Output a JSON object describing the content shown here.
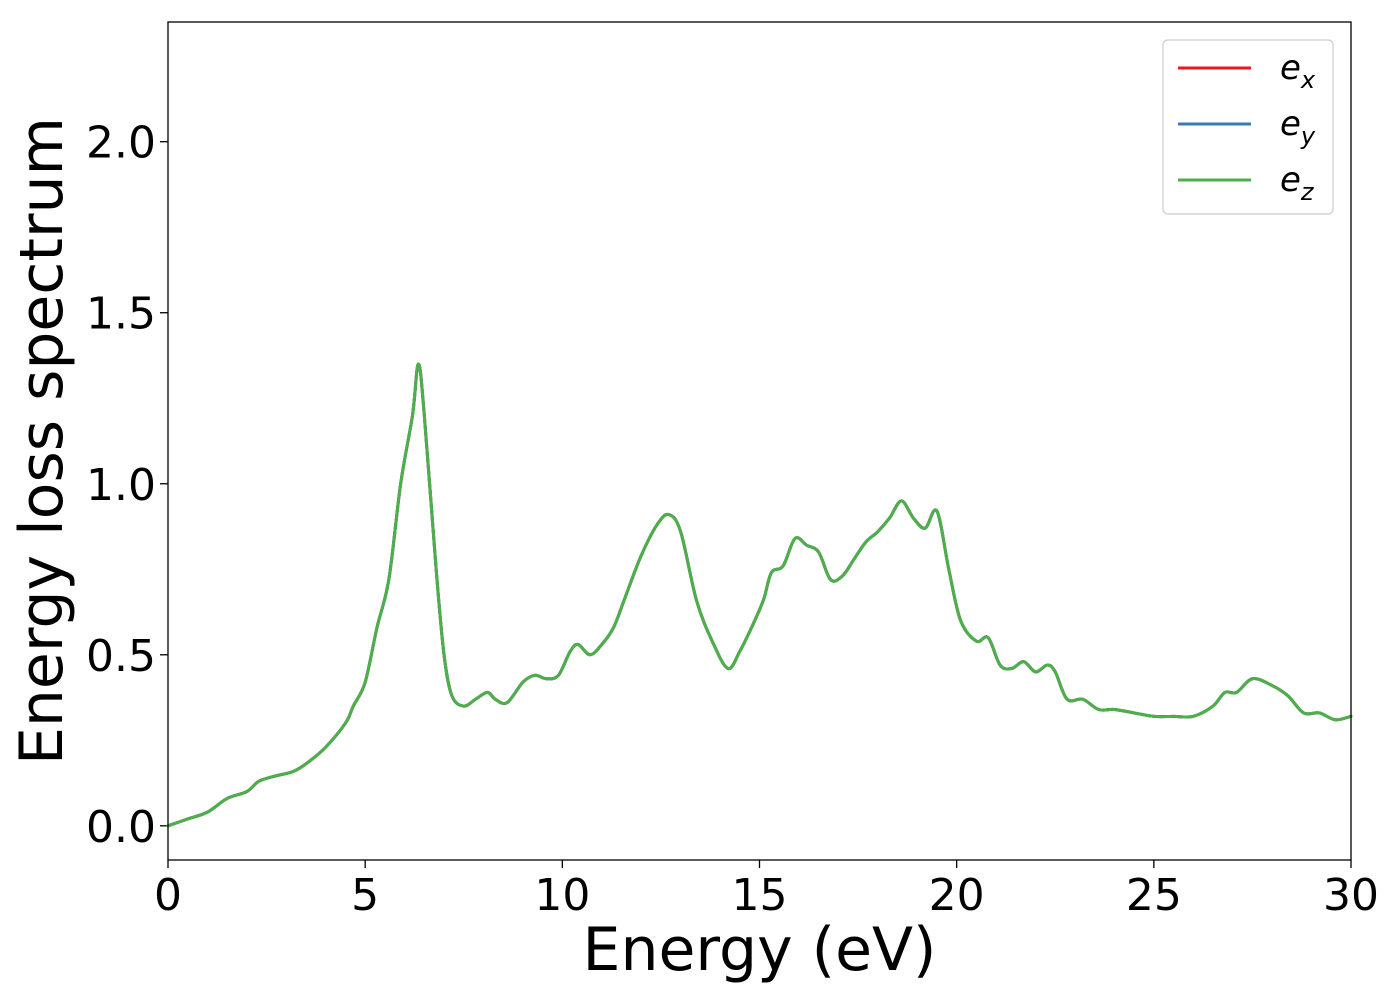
{
  "chart_data": {
    "type": "line",
    "xlabel": "Energy (eV)",
    "ylabel": "Energy loss spectrum",
    "xlim": [
      0,
      30
    ],
    "ylim": [
      -0.1,
      2.35
    ],
    "xticks": [
      0,
      5,
      10,
      15,
      20,
      25,
      30
    ],
    "xtick_labels": [
      "0",
      "5",
      "10",
      "15",
      "20",
      "25",
      "30"
    ],
    "yticks": [
      0.0,
      0.5,
      1.0,
      1.5,
      2.0
    ],
    "ytick_labels": [
      "0.0",
      "0.5",
      "1.0",
      "1.5",
      "2.0"
    ],
    "grid": false,
    "legend_position": "top-right",
    "legend_items": [
      {
        "base": "e",
        "sub": "x",
        "color": "#e41a1c"
      },
      {
        "base": "e",
        "sub": "y",
        "color": "#377eb8"
      },
      {
        "base": "e",
        "sub": "z",
        "color": "#4daf4a"
      }
    ],
    "x": [
      0,
      0.5,
      1.0,
      1.5,
      2.0,
      2.3,
      2.7,
      3.2,
      3.6,
      4.0,
      4.5,
      4.7,
      5.0,
      5.3,
      5.6,
      5.9,
      6.2,
      6.35,
      6.5,
      6.8,
      7.0,
      7.2,
      7.5,
      7.8,
      8.1,
      8.3,
      8.6,
      9.0,
      9.3,
      9.6,
      9.9,
      10.2,
      10.4,
      10.7,
      11.0,
      11.3,
      11.6,
      12.0,
      12.4,
      12.7,
      13.0,
      13.4,
      13.8,
      14.2,
      14.5,
      14.8,
      15.1,
      15.3,
      15.6,
      15.9,
      16.2,
      16.5,
      16.8,
      17.1,
      17.4,
      17.7,
      18.0,
      18.3,
      18.6,
      18.9,
      19.2,
      19.5,
      19.8,
      20.1,
      20.5,
      20.8,
      21.1,
      21.4,
      21.7,
      22.0,
      22.3,
      22.5,
      22.8,
      23.2,
      23.6,
      24.0,
      24.5,
      25.0,
      25.5,
      26.0,
      26.5,
      26.8,
      27.1,
      27.5,
      28.0,
      28.4,
      28.8,
      29.2,
      29.6,
      30.0
    ],
    "series": [
      {
        "values": [
          0.0,
          0.02,
          0.04,
          0.08,
          0.1,
          0.13,
          0.145,
          0.16,
          0.19,
          0.23,
          0.3,
          0.35,
          0.42,
          0.58,
          0.72,
          1.0,
          1.2,
          1.35,
          1.2,
          0.75,
          0.5,
          0.38,
          0.35,
          0.37,
          0.39,
          0.37,
          0.36,
          0.42,
          0.44,
          0.43,
          0.44,
          0.51,
          0.53,
          0.5,
          0.53,
          0.58,
          0.67,
          0.79,
          0.88,
          0.91,
          0.86,
          0.66,
          0.54,
          0.46,
          0.51,
          0.58,
          0.66,
          0.74,
          0.76,
          0.84,
          0.82,
          0.8,
          0.72,
          0.73,
          0.78,
          0.83,
          0.86,
          0.9,
          0.95,
          0.9,
          0.87,
          0.92,
          0.75,
          0.6,
          0.54,
          0.55,
          0.47,
          0.46,
          0.48,
          0.45,
          0.47,
          0.45,
          0.37,
          0.37,
          0.34,
          0.34,
          0.33,
          0.32,
          0.32,
          0.32,
          0.35,
          0.39,
          0.39,
          0.43,
          0.41,
          0.38,
          0.33,
          0.33,
          0.31,
          0.32
        ],
        "color": "#e41a1c"
      },
      {
        "values": [
          0.0,
          0.02,
          0.04,
          0.08,
          0.1,
          0.13,
          0.145,
          0.16,
          0.19,
          0.23,
          0.3,
          0.35,
          0.42,
          0.58,
          0.72,
          1.0,
          1.2,
          1.35,
          1.2,
          0.75,
          0.5,
          0.38,
          0.35,
          0.37,
          0.39,
          0.37,
          0.36,
          0.42,
          0.44,
          0.43,
          0.44,
          0.51,
          0.53,
          0.5,
          0.53,
          0.58,
          0.67,
          0.79,
          0.88,
          0.91,
          0.86,
          0.66,
          0.54,
          0.46,
          0.51,
          0.58,
          0.66,
          0.74,
          0.76,
          0.84,
          0.82,
          0.8,
          0.72,
          0.73,
          0.78,
          0.83,
          0.86,
          0.9,
          0.95,
          0.9,
          0.87,
          0.92,
          0.75,
          0.6,
          0.54,
          0.55,
          0.47,
          0.46,
          0.48,
          0.45,
          0.47,
          0.45,
          0.37,
          0.37,
          0.34,
          0.34,
          0.33,
          0.32,
          0.32,
          0.32,
          0.35,
          0.39,
          0.39,
          0.43,
          0.41,
          0.38,
          0.33,
          0.33,
          0.31,
          0.32
        ],
        "color": "#377eb8"
      },
      {
        "values": [
          0.0,
          0.02,
          0.04,
          0.08,
          0.1,
          0.13,
          0.145,
          0.16,
          0.19,
          0.23,
          0.3,
          0.35,
          0.42,
          0.58,
          0.72,
          1.0,
          1.2,
          1.35,
          1.2,
          0.75,
          0.5,
          0.38,
          0.35,
          0.37,
          0.39,
          0.37,
          0.36,
          0.42,
          0.44,
          0.43,
          0.44,
          0.51,
          0.53,
          0.5,
          0.53,
          0.58,
          0.67,
          0.79,
          0.88,
          0.91,
          0.86,
          0.66,
          0.54,
          0.46,
          0.51,
          0.58,
          0.66,
          0.74,
          0.76,
          0.84,
          0.82,
          0.8,
          0.72,
          0.73,
          0.78,
          0.83,
          0.86,
          0.9,
          0.95,
          0.9,
          0.87,
          0.92,
          0.75,
          0.6,
          0.54,
          0.55,
          0.47,
          0.46,
          0.48,
          0.45,
          0.47,
          0.45,
          0.37,
          0.37,
          0.34,
          0.34,
          0.33,
          0.32,
          0.32,
          0.32,
          0.35,
          0.39,
          0.39,
          0.43,
          0.41,
          0.38,
          0.33,
          0.33,
          0.31,
          0.32
        ],
        "color": "#4daf4a"
      }
    ]
  }
}
